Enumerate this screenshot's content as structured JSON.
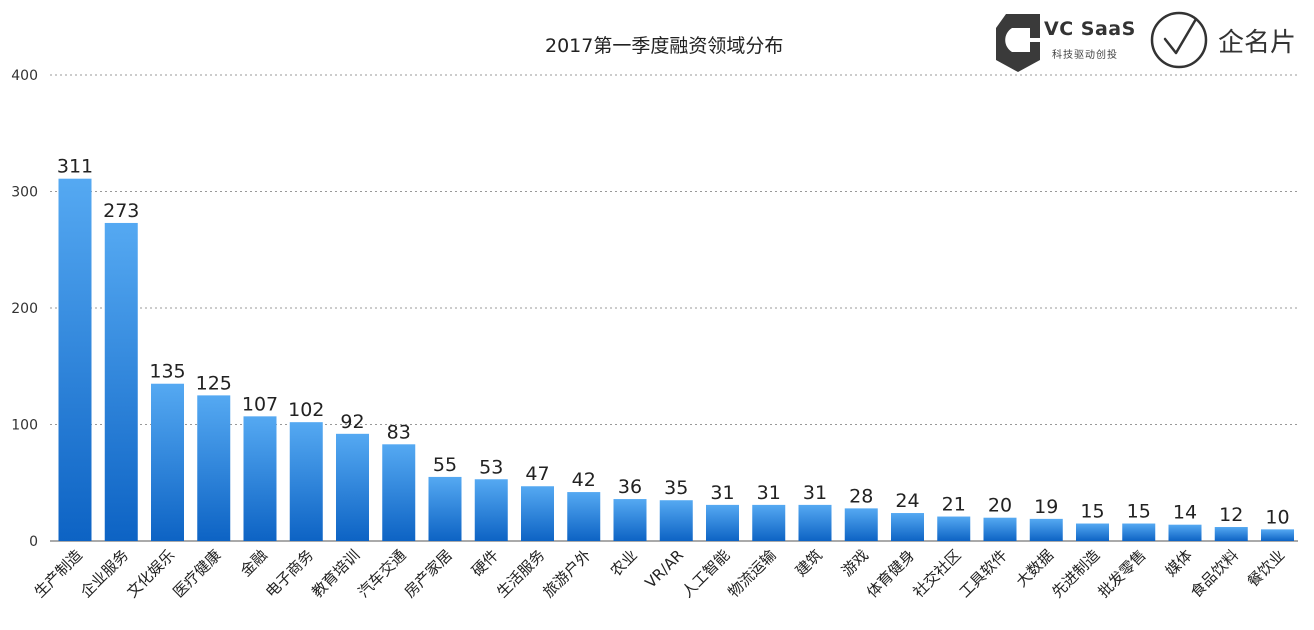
{
  "chart_data": {
    "type": "bar",
    "title": "2017第一季度融资领域分布",
    "xlabel": "",
    "ylabel": "",
    "ylim": [
      0,
      400
    ],
    "yticks": [
      0,
      100,
      200,
      300,
      400
    ],
    "grid": true,
    "bar_color_top": "#55a9f2",
    "bar_color_bottom": "#0d63c4",
    "categories": [
      "生产制造",
      "企业服务",
      "文化娱乐",
      "医疗健康",
      "金融",
      "电子商务",
      "教育培训",
      "汽车交通",
      "房产家居",
      "硬件",
      "生活服务",
      "旅游户外",
      "农业",
      "VR/AR",
      "人工智能",
      "物流运输",
      "建筑",
      "游戏",
      "体育健身",
      "社交社区",
      "工具软件",
      "大数据",
      "先进制造",
      "批发零售",
      "媒体",
      "食品饮料",
      "餐饮业"
    ],
    "values": [
      311,
      273,
      135,
      125,
      107,
      102,
      92,
      83,
      55,
      53,
      47,
      42,
      36,
      35,
      31,
      31,
      31,
      28,
      24,
      21,
      20,
      19,
      15,
      15,
      14,
      12,
      10
    ]
  },
  "logos": {
    "vc_name": "VC SaaS",
    "vc_tagline": "科技驱动创投",
    "vc_icon": "bookmark-c-icon",
    "qmp_name": "企名片",
    "qmp_icon": "circle-check-icon"
  }
}
